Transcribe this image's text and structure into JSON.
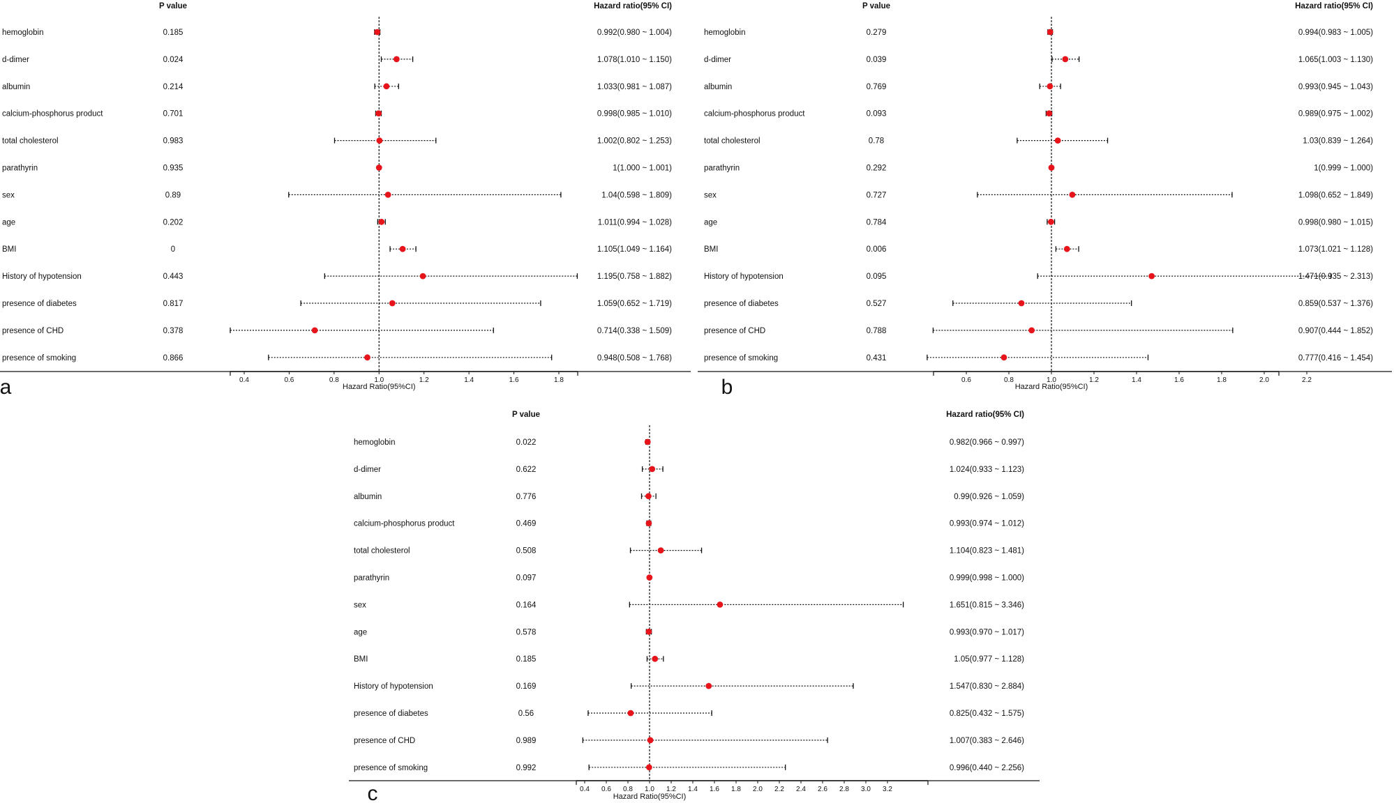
{
  "chart_data": [
    {
      "type": "forest",
      "panel_label": "a",
      "header_p": "P value",
      "header_hr": "Hazard ratio(95% CI)",
      "xlabel": "Hazard Ratio(95%CI)",
      "reference": 1.0,
      "axis_ticks": [
        "0.4",
        "0.6",
        "0.8",
        "1.0",
        "1.2",
        "1.4",
        "1.6",
        "1.8"
      ],
      "rows": [
        {
          "label": "hemoglobin",
          "p": "0.185",
          "hr": 0.992,
          "lo": 0.98,
          "hi": 1.004,
          "text": "0.992(0.980 ~ 1.004)"
        },
        {
          "label": "d-dimer",
          "p": "0.024",
          "hr": 1.078,
          "lo": 1.01,
          "hi": 1.15,
          "text": "1.078(1.010 ~ 1.150)"
        },
        {
          "label": "albumin",
          "p": "0.214",
          "hr": 1.033,
          "lo": 0.981,
          "hi": 1.087,
          "text": "1.033(0.981 ~ 1.087)"
        },
        {
          "label": "calcium-phosphorus product",
          "p": "0.701",
          "hr": 0.998,
          "lo": 0.985,
          "hi": 1.01,
          "text": "0.998(0.985 ~ 1.010)"
        },
        {
          "label": "total cholesterol",
          "p": "0.983",
          "hr": 1.002,
          "lo": 0.802,
          "hi": 1.253,
          "text": "1.002(0.802 ~ 1.253)"
        },
        {
          "label": "parathyrin",
          "p": "0.935",
          "hr": 1.0,
          "lo": 1.0,
          "hi": 1.001,
          "text": "1(1.000 ~ 1.001)"
        },
        {
          "label": "sex",
          "p": "0.89",
          "hr": 1.04,
          "lo": 0.598,
          "hi": 1.809,
          "text": "1.04(0.598 ~ 1.809)"
        },
        {
          "label": "age",
          "p": "0.202",
          "hr": 1.011,
          "lo": 0.994,
          "hi": 1.028,
          "text": "1.011(0.994 ~ 1.028)"
        },
        {
          "label": "BMI",
          "p": "0",
          "hr": 1.105,
          "lo": 1.049,
          "hi": 1.164,
          "text": "1.105(1.049 ~ 1.164)"
        },
        {
          "label": "History of hypotension",
          "p": "0.443",
          "hr": 1.195,
          "lo": 0.758,
          "hi": 1.882,
          "text": "1.195(0.758 ~ 1.882)"
        },
        {
          "label": "presence of diabetes",
          "p": "0.817",
          "hr": 1.059,
          "lo": 0.652,
          "hi": 1.719,
          "text": "1.059(0.652 ~ 1.719)"
        },
        {
          "label": "presence of CHD",
          "p": "0.378",
          "hr": 0.714,
          "lo": 0.338,
          "hi": 1.509,
          "text": "0.714(0.338 ~ 1.509)"
        },
        {
          "label": "presence of smoking",
          "p": "0.866",
          "hr": 0.948,
          "lo": 0.508,
          "hi": 1.768,
          "text": "0.948(0.508 ~ 1.768)"
        }
      ]
    },
    {
      "type": "forest",
      "panel_label": "b",
      "header_p": "P value",
      "header_hr": "Hazard ratio(95% CI)",
      "xlabel": "Hazard Ratio(95%CI)",
      "reference": 1.0,
      "axis_ticks": [
        "0.6",
        "0.8",
        "1.0",
        "1.2",
        "1.4",
        "1.6",
        "1.8",
        "2.0",
        "2.2"
      ],
      "rows": [
        {
          "label": "hemoglobin",
          "p": "0.279",
          "hr": 0.994,
          "lo": 0.983,
          "hi": 1.005,
          "text": "0.994(0.983 ~ 1.005)"
        },
        {
          "label": "d-dimer",
          "p": "0.039",
          "hr": 1.065,
          "lo": 1.003,
          "hi": 1.13,
          "text": "1.065(1.003 ~ 1.130)"
        },
        {
          "label": "albumin",
          "p": "0.769",
          "hr": 0.993,
          "lo": 0.945,
          "hi": 1.043,
          "text": "0.993(0.945 ~ 1.043)"
        },
        {
          "label": "calcium-phosphorus product",
          "p": "0.093",
          "hr": 0.989,
          "lo": 0.975,
          "hi": 1.002,
          "text": "0.989(0.975 ~ 1.002)"
        },
        {
          "label": "total cholesterol",
          "p": "0.78",
          "hr": 1.03,
          "lo": 0.839,
          "hi": 1.264,
          "text": "1.03(0.839 ~ 1.264)"
        },
        {
          "label": "parathyrin",
          "p": "0.292",
          "hr": 1.0,
          "lo": 0.999,
          "hi": 1.0,
          "text": "1(0.999 ~ 1.000)"
        },
        {
          "label": "sex",
          "p": "0.727",
          "hr": 1.098,
          "lo": 0.652,
          "hi": 1.849,
          "text": "1.098(0.652 ~ 1.849)"
        },
        {
          "label": "age",
          "p": "0.784",
          "hr": 0.998,
          "lo": 0.98,
          "hi": 1.015,
          "text": "0.998(0.980 ~ 1.015)"
        },
        {
          "label": "BMI",
          "p": "0.006",
          "hr": 1.073,
          "lo": 1.021,
          "hi": 1.128,
          "text": "1.073(1.021 ~ 1.128)"
        },
        {
          "label": "History of hypotension",
          "p": "0.095",
          "hr": 1.471,
          "lo": 0.935,
          "hi": 2.313,
          "text": "1.471(0.935 ~ 2.313)"
        },
        {
          "label": "presence of diabetes",
          "p": "0.527",
          "hr": 0.859,
          "lo": 0.537,
          "hi": 1.376,
          "text": "0.859(0.537 ~ 1.376)"
        },
        {
          "label": "presence of CHD",
          "p": "0.788",
          "hr": 0.907,
          "lo": 0.444,
          "hi": 1.852,
          "text": "0.907(0.444 ~ 1.852)"
        },
        {
          "label": "presence of smoking",
          "p": "0.431",
          "hr": 0.777,
          "lo": 0.416,
          "hi": 1.454,
          "text": "0.777(0.416 ~ 1.454)"
        }
      ]
    },
    {
      "type": "forest",
      "panel_label": "c",
      "header_p": "P value",
      "header_hr": "Hazard ratio(95% CI)",
      "xlabel": "Hazard Ratio(95%CI)",
      "reference": 1.0,
      "axis_ticks": [
        "0.4",
        "0.6",
        "0.8",
        "1.0",
        "1.2",
        "1.4",
        "1.6",
        "1.8",
        "2.0",
        "2.2",
        "2.4",
        "2.6",
        "2.8",
        "3.0",
        "3.2"
      ],
      "rows": [
        {
          "label": "hemoglobin",
          "p": "0.022",
          "hr": 0.982,
          "lo": 0.966,
          "hi": 0.997,
          "text": "0.982(0.966 ~ 0.997)"
        },
        {
          "label": "d-dimer",
          "p": "0.622",
          "hr": 1.024,
          "lo": 0.933,
          "hi": 1.123,
          "text": "1.024(0.933 ~ 1.123)"
        },
        {
          "label": "albumin",
          "p": "0.776",
          "hr": 0.99,
          "lo": 0.926,
          "hi": 1.059,
          "text": "0.99(0.926 ~ 1.059)"
        },
        {
          "label": "calcium-phosphorus product",
          "p": "0.469",
          "hr": 0.993,
          "lo": 0.974,
          "hi": 1.012,
          "text": "0.993(0.974 ~ 1.012)"
        },
        {
          "label": "total cholesterol",
          "p": "0.508",
          "hr": 1.104,
          "lo": 0.823,
          "hi": 1.481,
          "text": "1.104(0.823 ~ 1.481)"
        },
        {
          "label": "parathyrin",
          "p": "0.097",
          "hr": 0.999,
          "lo": 0.998,
          "hi": 1.0,
          "text": "0.999(0.998 ~ 1.000)"
        },
        {
          "label": "sex",
          "p": "0.164",
          "hr": 1.651,
          "lo": 0.815,
          "hi": 3.346,
          "text": "1.651(0.815 ~ 3.346)"
        },
        {
          "label": "age",
          "p": "0.578",
          "hr": 0.993,
          "lo": 0.97,
          "hi": 1.017,
          "text": "0.993(0.970 ~ 1.017)"
        },
        {
          "label": "BMI",
          "p": "0.185",
          "hr": 1.05,
          "lo": 0.977,
          "hi": 1.128,
          "text": "1.05(0.977 ~ 1.128)"
        },
        {
          "label": "History of hypotension",
          "p": "0.169",
          "hr": 1.547,
          "lo": 0.83,
          "hi": 2.884,
          "text": "1.547(0.830 ~ 2.884)"
        },
        {
          "label": "presence of diabetes",
          "p": "0.56",
          "hr": 0.825,
          "lo": 0.432,
          "hi": 1.575,
          "text": "0.825(0.432 ~ 1.575)"
        },
        {
          "label": "presence of CHD",
          "p": "0.989",
          "hr": 1.007,
          "lo": 0.383,
          "hi": 2.646,
          "text": "1.007(0.383 ~ 2.646)"
        },
        {
          "label": "presence of smoking",
          "p": "0.992",
          "hr": 0.996,
          "lo": 0.44,
          "hi": 2.256,
          "text": "0.996(0.440 ~ 2.256)"
        }
      ]
    }
  ],
  "colors": {
    "point": "#e8141b",
    "ink": "#111111"
  }
}
